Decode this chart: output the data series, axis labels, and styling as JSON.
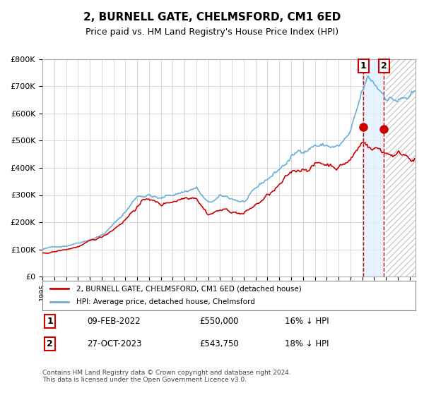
{
  "title": "2, BURNELL GATE, CHELMSFORD, CM1 6ED",
  "subtitle": "Price paid vs. HM Land Registry's House Price Index (HPI)",
  "xlabel": "",
  "ylabel": "",
  "ylim": [
    0,
    800000
  ],
  "yticks": [
    0,
    100000,
    200000,
    300000,
    400000,
    500000,
    600000,
    700000,
    800000
  ],
  "ytick_labels": [
    "£0",
    "£100K",
    "£200K",
    "£300K",
    "£400K",
    "£500K",
    "£600K",
    "£700K",
    "£800K"
  ],
  "hpi_color": "#6baed6",
  "price_color": "#cc0000",
  "marker_color": "#cc0000",
  "vline_color": "#cc0000",
  "vspan_color": "#ddeeff",
  "sale1_date": 2022.1,
  "sale1_price": 550000,
  "sale1_label": "09-FEB-2022",
  "sale1_amount": "£550,000",
  "sale1_note": "16% ↓ HPI",
  "sale2_date": 2023.82,
  "sale2_price": 543750,
  "sale2_label": "27-OCT-2023",
  "sale2_amount": "£543,750",
  "sale2_note": "18% ↓ HPI",
  "legend_red": "2, BURNELL GATE, CHELMSFORD, CM1 6ED (detached house)",
  "legend_blue": "HPI: Average price, detached house, Chelmsford",
  "footnote": "Contains HM Land Registry data © Crown copyright and database right 2024.\nThis data is licensed under the Open Government Licence v3.0.",
  "background_color": "#ffffff",
  "grid_color": "#cccccc",
  "hatch_region_start": 2024.0,
  "xmin": 1995.0,
  "xmax": 2026.5
}
